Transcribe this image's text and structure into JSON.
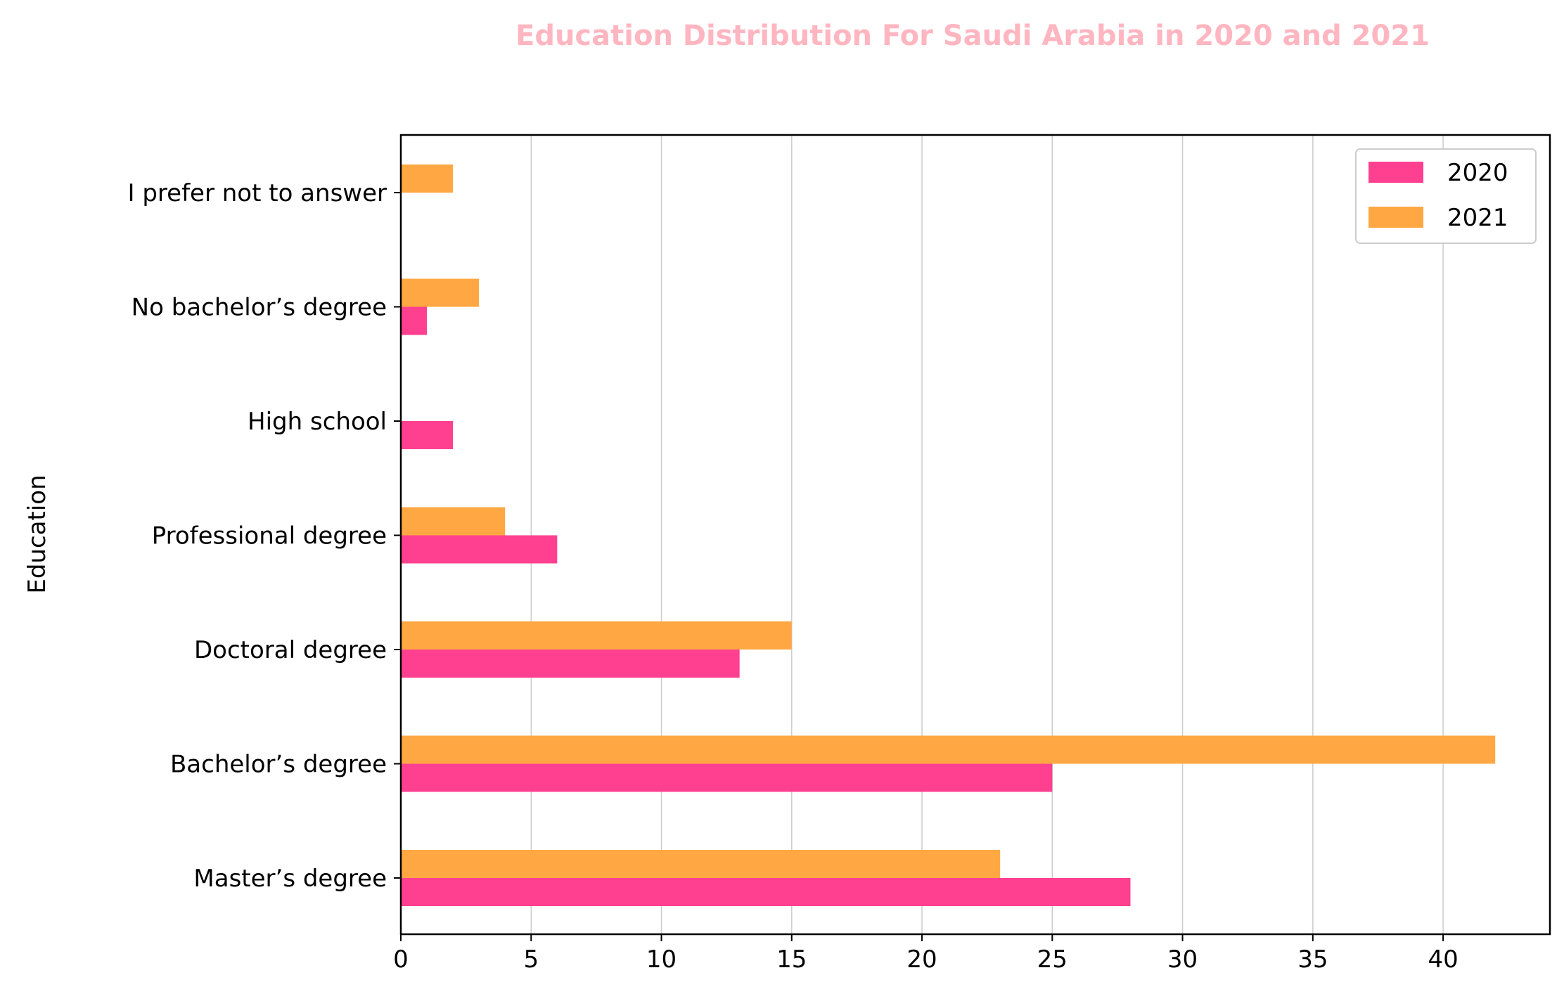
{
  "chart_data": {
    "type": "bar",
    "orientation": "horizontal",
    "title": "Education Distribution For Saudi Arabia in 2020 and 2021",
    "xlabel": "",
    "ylabel": "Education",
    "categories": [
      "Master’s degree",
      "Bachelor’s degree",
      "Doctoral degree",
      "Professional degree",
      "High school",
      "No bachelor’s degree",
      "I prefer not to answer"
    ],
    "series": [
      {
        "name": "2020",
        "color": "#ff4090",
        "values": [
          28,
          25,
          13,
          6,
          2,
          1,
          0
        ]
      },
      {
        "name": "2021",
        "color": "#ffa843",
        "values": [
          23,
          42,
          15,
          4,
          0,
          3,
          2
        ]
      }
    ],
    "xlim": [
      0,
      44.1
    ],
    "xticks": [
      0,
      5,
      10,
      15,
      20,
      25,
      30,
      35,
      40
    ],
    "grid": "vertical",
    "legend_position": "top-right",
    "title_color": "#ffb6c1"
  }
}
